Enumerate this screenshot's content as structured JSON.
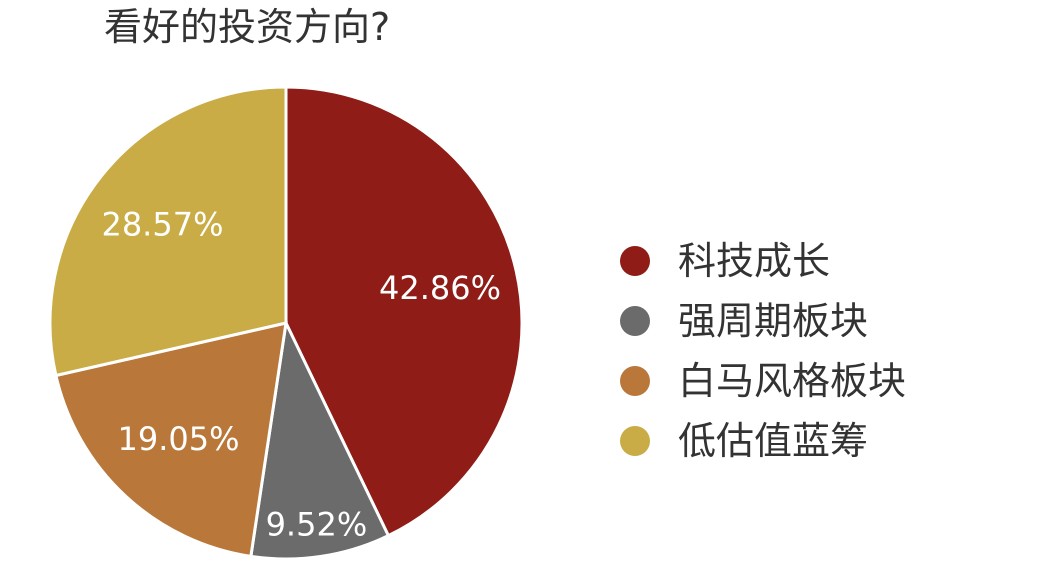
{
  "chart_data": {
    "type": "pie",
    "title": "看好的投资方向?",
    "categories": [
      "科技成长",
      "强周期板块",
      "白马风格板块",
      "低估值蓝筹"
    ],
    "values": [
      42.86,
      9.52,
      19.05,
      28.57
    ],
    "labels": [
      "42.86%",
      "9.52%",
      "19.05%",
      "28.57%"
    ],
    "colors": [
      "#8f1c16",
      "#6b6b6b",
      "#b9783a",
      "#c9ac45"
    ],
    "legend_position": "right",
    "start_angle": "12 o'clock",
    "direction": "clockwise"
  }
}
